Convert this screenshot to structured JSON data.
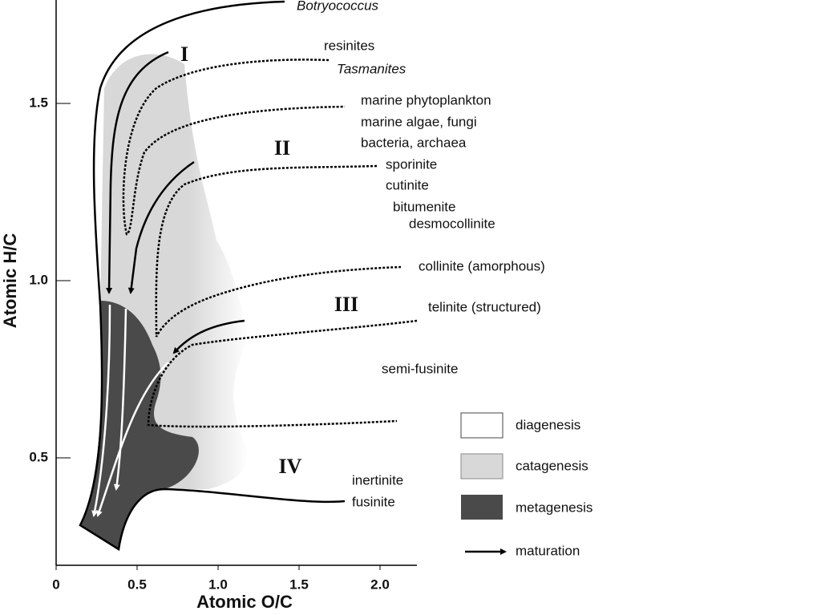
{
  "axes": {
    "x_label": "Atomic O/C",
    "y_label": "Atomic H/C",
    "xlim": [
      0,
      2.2
    ],
    "ylim": [
      0.2,
      1.8
    ],
    "xticks": [
      0,
      0.5,
      {
        "value": 1,
        "label": "1.0"
      },
      1.5,
      {
        "value": 2,
        "label": "2.0"
      }
    ],
    "yticks": [
      0.5,
      {
        "value": 1,
        "label": "1.0"
      },
      1.5
    ]
  },
  "types": [
    "I",
    "II",
    "III",
    "IV"
  ],
  "labels": [
    "Botryococcus",
    "resinites",
    "Tasmanites",
    "marine phytoplankton",
    "marine algae, fungi",
    "bacteria, archaea",
    "sporinite",
    "cutinite",
    "bitumenite",
    "desmocollinite",
    "collinite (amorphous)",
    "telinite (structured)",
    "semi-fusinite",
    "inertinite",
    "fusinite"
  ],
  "legend": [
    "diagenesis",
    "catagenesis",
    "metagenesis",
    "maturation"
  ]
}
